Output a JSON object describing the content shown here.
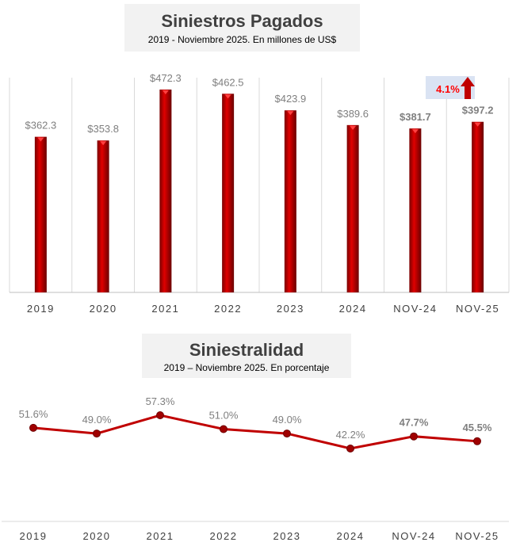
{
  "chart_data": [
    {
      "type": "bar",
      "title": "Siniestros Pagados",
      "subtitle": "2019 - Noviembre 2025. En millones de US$",
      "categories": [
        "2019",
        "2020",
        "2021",
        "2022",
        "2023",
        "2024",
        "NOV-24",
        "NOV-25"
      ],
      "values": [
        362.3,
        353.8,
        472.3,
        462.5,
        423.9,
        389.6,
        381.7,
        397.2
      ],
      "labels": [
        "$362.3",
        "$353.8",
        "$472.3",
        "$462.5",
        "$423.9",
        "$389.6",
        "$381.7",
        "$397.2"
      ],
      "ylim": [
        0,
        500
      ],
      "grid": "vertical",
      "annotation": {
        "text": "4.1%",
        "direction": "up",
        "color": "#ff0000",
        "background": "#dae3f3"
      },
      "color": "#c00000"
    },
    {
      "type": "line",
      "title": "Siniestralidad",
      "subtitle": "2019 –  Noviembre 2025. En porcentaje",
      "categories": [
        "2019",
        "2020",
        "2021",
        "2022",
        "2023",
        "2024",
        "NOV-24",
        "NOV-25"
      ],
      "values": [
        51.6,
        49.0,
        57.3,
        51.0,
        49.0,
        42.2,
        47.7,
        45.5
      ],
      "labels": [
        "51.6%",
        "49.0%",
        "57.3%",
        "51.0%",
        "49.0%",
        "42.2%",
        "47.7%",
        "45.5%"
      ],
      "ylim": [
        10,
        60
      ],
      "color": "#c00000"
    }
  ]
}
